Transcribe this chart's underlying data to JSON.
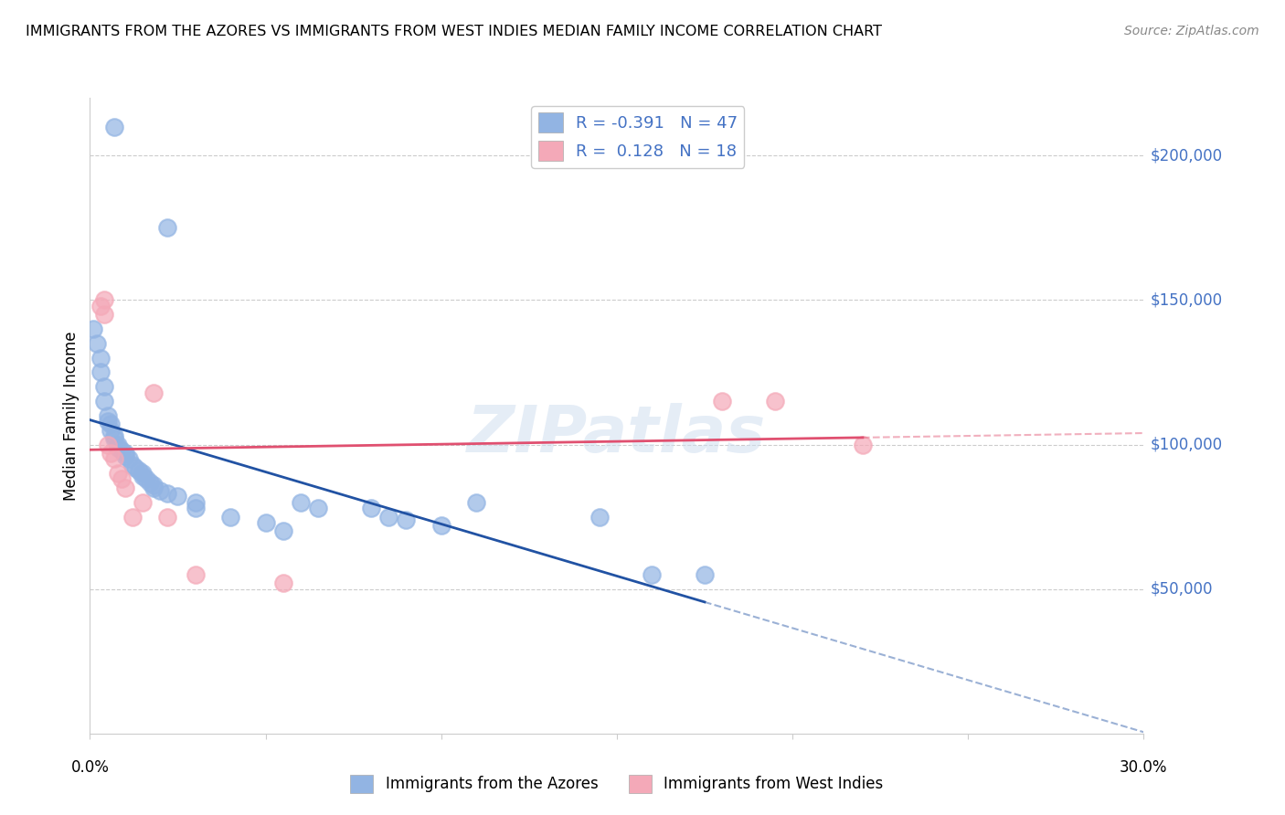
{
  "title": "IMMIGRANTS FROM THE AZORES VS IMMIGRANTS FROM WEST INDIES MEDIAN FAMILY INCOME CORRELATION CHART",
  "source": "Source: ZipAtlas.com",
  "ylabel": "Median Family Income",
  "xlim": [
    0.0,
    0.3
  ],
  "ylim": [
    0,
    220000
  ],
  "watermark": "ZIPatlas",
  "legend_blue_r": "-0.391",
  "legend_blue_n": "47",
  "legend_pink_r": "0.128",
  "legend_pink_n": "18",
  "blue_label": "Immigrants from the Azores",
  "pink_label": "Immigrants from West Indies",
  "blue_color": "#92b4e3",
  "pink_color": "#f4a9b8",
  "blue_line_color": "#2152a3",
  "pink_line_color": "#e05070",
  "blue_points_x": [
    0.007,
    0.022,
    0.001,
    0.002,
    0.003,
    0.003,
    0.004,
    0.004,
    0.005,
    0.005,
    0.006,
    0.006,
    0.007,
    0.007,
    0.008,
    0.008,
    0.009,
    0.01,
    0.01,
    0.011,
    0.012,
    0.013,
    0.014,
    0.015,
    0.015,
    0.016,
    0.017,
    0.018,
    0.018,
    0.02,
    0.022,
    0.025,
    0.03,
    0.03,
    0.04,
    0.05,
    0.055,
    0.06,
    0.065,
    0.08,
    0.085,
    0.09,
    0.1,
    0.11,
    0.145,
    0.16,
    0.175
  ],
  "blue_points_y": [
    210000,
    175000,
    140000,
    135000,
    130000,
    125000,
    120000,
    115000,
    110000,
    108000,
    107000,
    105000,
    103000,
    102000,
    100000,
    99000,
    98000,
    97000,
    96000,
    95000,
    93000,
    92000,
    91000,
    90000,
    89000,
    88000,
    87000,
    86000,
    85000,
    84000,
    83000,
    82000,
    80000,
    78000,
    75000,
    73000,
    70000,
    80000,
    78000,
    78000,
    75000,
    74000,
    72000,
    80000,
    75000,
    55000,
    55000
  ],
  "pink_points_x": [
    0.003,
    0.004,
    0.004,
    0.005,
    0.006,
    0.007,
    0.008,
    0.009,
    0.01,
    0.012,
    0.015,
    0.018,
    0.022,
    0.03,
    0.055,
    0.18,
    0.195,
    0.22
  ],
  "pink_points_y": [
    148000,
    145000,
    150000,
    100000,
    97000,
    95000,
    90000,
    88000,
    85000,
    75000,
    80000,
    118000,
    75000,
    55000,
    52000,
    115000,
    115000,
    100000
  ],
  "ytick_vals": [
    50000,
    100000,
    150000,
    200000
  ],
  "ytick_labels": [
    "$50,000",
    "$100,000",
    "$150,000",
    "$200,000"
  ],
  "gridline_color": "#cccccc",
  "spine_color": "#cccccc"
}
